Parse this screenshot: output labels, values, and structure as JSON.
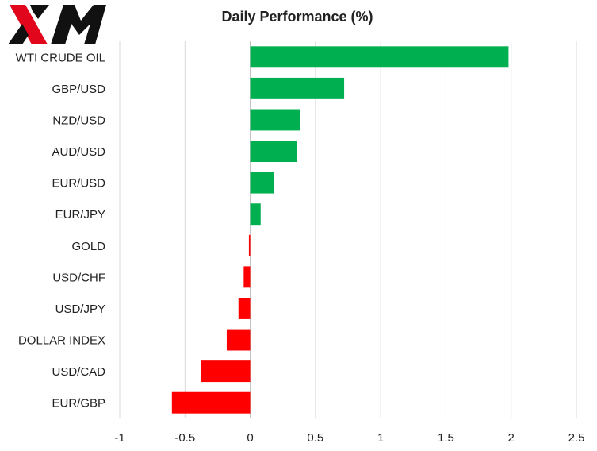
{
  "brand": {
    "logo_text": "XM"
  },
  "chart_data": {
    "type": "bar",
    "orientation": "horizontal",
    "title": "Daily Performance  (%)",
    "xlabel": "",
    "ylabel": "",
    "categories": [
      "WTI CRUDE OIL",
      "GBP/USD",
      "NZD/USD",
      "AUD/USD",
      "EUR/USD",
      "EUR/JPY",
      "GOLD",
      "USD/CHF",
      "USD/JPY",
      "DOLLAR INDEX",
      "USD/CAD",
      "EUR/GBP"
    ],
    "values": [
      1.98,
      0.72,
      0.38,
      0.36,
      0.18,
      0.08,
      -0.01,
      -0.05,
      -0.09,
      -0.18,
      -0.38,
      -0.6
    ],
    "xlim": [
      -1,
      2.5
    ],
    "xticks": [
      -1,
      -0.5,
      0,
      0.5,
      1,
      1.5,
      2,
      2.5
    ],
    "xtick_labels": [
      "-1",
      "-0.5",
      "0",
      "0.5",
      "1",
      "1.5",
      "2",
      "2.5"
    ],
    "grid": "vertical",
    "legend": "none",
    "colors": {
      "positive": "#00b050",
      "negative": "#ff0000",
      "grid": "#d9d9d9",
      "axis": "#bfbfbf"
    }
  }
}
